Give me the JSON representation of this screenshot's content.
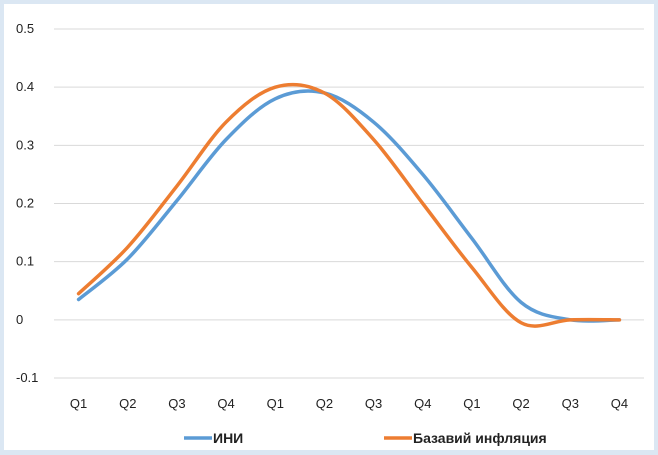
{
  "chart_data": {
    "type": "line",
    "categories": [
      "Q1",
      "Q2",
      "Q3",
      "Q4",
      "Q1",
      "Q2",
      "Q3",
      "Q4",
      "Q1",
      "Q2",
      "Q3",
      "Q4"
    ],
    "ylim": [
      -0.1,
      0.5
    ],
    "yticks": [
      -0.1,
      0,
      0.1,
      0.2,
      0.3,
      0.4,
      0.5
    ],
    "ytick_labels": [
      "-0.1",
      "0",
      "0.1",
      "0.2",
      "0.3",
      "0.4",
      "0.5"
    ],
    "grid": true,
    "legend_position": "bottom",
    "series": [
      {
        "name": "ИНИ",
        "color": "#5b9bd5",
        "values": [
          0.035,
          0.105,
          0.205,
          0.31,
          0.38,
          0.39,
          0.34,
          0.25,
          0.14,
          0.03,
          0.0,
          0.0
        ]
      },
      {
        "name": "Базавий инфляция",
        "color": "#ed7d31",
        "values": [
          0.045,
          0.125,
          0.23,
          0.34,
          0.4,
          0.39,
          0.31,
          0.2,
          0.09,
          -0.005,
          0.0,
          0.0
        ]
      }
    ]
  }
}
